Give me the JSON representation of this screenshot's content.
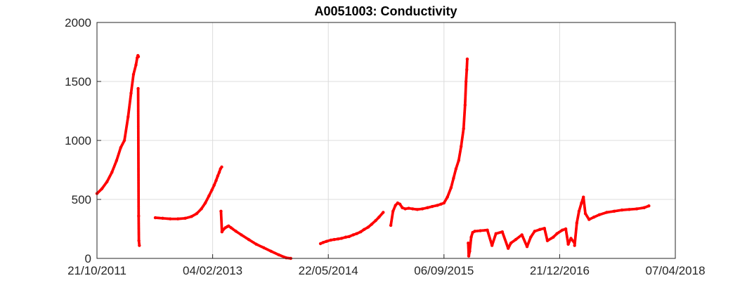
{
  "chart_data": {
    "type": "scatter",
    "title": "A0051003: Conductivity",
    "xlabel": "",
    "ylabel": "",
    "x_axis_kind": "date",
    "xlim": [
      "2011-10-21",
      "2018-04-07"
    ],
    "ylim": [
      0,
      2000
    ],
    "x_ticks": [
      "2011-10-21",
      "2013-02-04",
      "2014-05-22",
      "2015-09-06",
      "2016-12-21",
      "2018-04-07"
    ],
    "x_tick_labels": [
      "21/10/2011",
      "04/02/2013",
      "22/05/2014",
      "06/09/2015",
      "21/12/2016",
      "07/04/2018"
    ],
    "y_ticks": [
      0,
      500,
      1000,
      1500,
      2000
    ],
    "y_tick_labels": [
      "0",
      "500",
      "1000",
      "1500",
      "2000"
    ],
    "grid": true,
    "legend": "none",
    "marker_color": "#ff0000",
    "series": [
      {
        "x": [
          "2011-10-21",
          "2011-11-10",
          "2011-12-01",
          "2011-12-21",
          "2012-01-09",
          "2012-01-26",
          "2012-02-10",
          "2012-02-25",
          "2012-03-08",
          "2012-03-18",
          "2012-03-28",
          "2012-04-02",
          "2012-04-05",
          "2012-04-07"
        ],
        "y": [
          550,
          590,
          650,
          730,
          830,
          940,
          1000,
          1200,
          1400,
          1560,
          1640,
          1700,
          1720,
          1710
        ]
      },
      {
        "x": [
          "2012-04-06",
          "2012-04-08",
          "2012-04-09",
          "2012-04-11"
        ],
        "y": [
          1440,
          360,
          150,
          110
        ]
      },
      {
        "x": [
          "2012-06-15",
          "2012-07-15",
          "2012-08-15",
          "2012-09-15",
          "2012-10-15",
          "2012-11-10",
          "2012-12-01",
          "2012-12-20",
          "2013-01-05",
          "2013-01-20",
          "2013-02-01",
          "2013-02-10",
          "2013-02-18",
          "2013-02-25",
          "2013-03-03",
          "2013-03-08",
          "2013-03-13"
        ],
        "y": [
          345,
          340,
          335,
          335,
          340,
          355,
          380,
          420,
          470,
          530,
          580,
          620,
          660,
          700,
          730,
          760,
          775
        ]
      },
      {
        "x": [
          "2013-03-10",
          "2013-03-14",
          "2013-03-20",
          "2013-03-28",
          "2013-04-05",
          "2013-04-10",
          "2013-04-20",
          "2013-05-10",
          "2013-06-01",
          "2013-07-01",
          "2013-08-01",
          "2013-09-01",
          "2013-10-01",
          "2013-11-01",
          "2013-12-01",
          "2013-12-20"
        ],
        "y": [
          400,
          225,
          245,
          260,
          270,
          275,
          260,
          230,
          200,
          160,
          120,
          90,
          60,
          30,
          5,
          0
        ]
      },
      {
        "x": [
          "2014-04-20",
          "2014-05-01",
          "2014-05-15",
          "2014-06-01",
          "2014-06-15",
          "2014-07-01",
          "2014-07-15",
          "2014-08-01",
          "2014-08-15",
          "2014-09-01",
          "2014-09-15",
          "2014-10-01",
          "2014-10-15",
          "2014-11-01",
          "2014-11-15",
          "2014-12-01",
          "2014-12-15",
          "2015-01-01"
        ],
        "y": [
          125,
          135,
          145,
          155,
          160,
          165,
          170,
          180,
          185,
          200,
          210,
          225,
          245,
          265,
          290,
          320,
          350,
          390
        ]
      },
      {
        "x": [
          "2015-02-01",
          "2015-02-10",
          "2015-02-20",
          "2015-03-01",
          "2015-03-10",
          "2015-03-20",
          "2015-04-01",
          "2015-04-15",
          "2015-05-01",
          "2015-05-20",
          "2015-06-10",
          "2015-07-01",
          "2015-07-20",
          "2015-08-10",
          "2015-08-25",
          "2015-09-06",
          "2015-09-20",
          "2015-10-05",
          "2015-10-15",
          "2015-10-25",
          "2015-11-05",
          "2015-11-15",
          "2015-11-25",
          "2015-12-01",
          "2015-12-05",
          "2015-12-08",
          "2015-12-10"
        ],
        "y": [
          280,
          400,
          450,
          470,
          460,
          430,
          420,
          425,
          420,
          415,
          420,
          430,
          440,
          450,
          460,
          470,
          520,
          600,
          680,
          760,
          830,
          950,
          1100,
          1300,
          1500,
          1600,
          1690
        ]
      },
      {
        "x": [
          "2015-12-14",
          "2015-12-16",
          "2015-12-20",
          "2015-12-26",
          "2016-01-01",
          "2016-01-10",
          "2016-02-01",
          "2016-03-01",
          "2016-03-20",
          "2016-04-05",
          "2016-05-01",
          "2016-05-25",
          "2016-06-05",
          "2016-06-25",
          "2016-07-20",
          "2016-08-10",
          "2016-08-25",
          "2016-09-10",
          "2016-10-01",
          "2016-10-20",
          "2016-11-01",
          "2016-11-25",
          "2016-12-10",
          "2017-01-01",
          "2017-01-15",
          "2017-01-25",
          "2017-02-05",
          "2017-02-20"
        ],
        "y": [
          130,
          20,
          60,
          180,
          220,
          230,
          235,
          240,
          110,
          210,
          225,
          85,
          130,
          160,
          200,
          100,
          180,
          230,
          245,
          255,
          150,
          180,
          210,
          240,
          250,
          120,
          170,
          130
        ]
      },
      {
        "x": [
          "2017-02-20",
          "2017-03-01",
          "2017-03-10",
          "2017-03-20",
          "2017-03-28",
          "2017-04-05",
          "2017-04-20",
          "2017-05-10",
          "2017-06-01",
          "2017-07-01",
          "2017-08-01",
          "2017-09-01",
          "2017-10-01",
          "2017-11-01",
          "2017-12-01",
          "2017-12-20"
        ],
        "y": [
          110,
          300,
          400,
          470,
          520,
          380,
          330,
          350,
          370,
          390,
          400,
          410,
          415,
          420,
          430,
          445
        ]
      }
    ]
  }
}
